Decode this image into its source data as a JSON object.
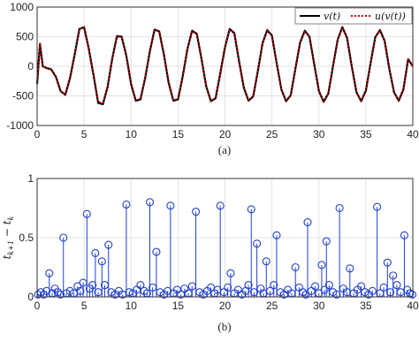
{
  "chart_data": [
    {
      "type": "line",
      "caption": "(a)",
      "xlim": [
        0,
        40
      ],
      "ylim": [
        -1000,
        1000
      ],
      "xticks": [
        0,
        5,
        10,
        15,
        20,
        25,
        30,
        35,
        40
      ],
      "yticks": [
        -1000,
        -500,
        0,
        500,
        1000
      ],
      "grid": true,
      "legend_position": "top-right",
      "series": [
        {
          "name": "v(t)",
          "color": "#000000",
          "style": "solid",
          "x": [
            0,
            0.3,
            0.6,
            1.0,
            1.5,
            2.0,
            2.5,
            3.0,
            3.5,
            4.0,
            4.5,
            5.0,
            5.5,
            6.0,
            6.5,
            7.0,
            7.5,
            8.0,
            8.5,
            9.0,
            9.5,
            10.0,
            10.5,
            11.0,
            11.5,
            12.0,
            12.5,
            13.0,
            13.5,
            14.0,
            14.5,
            15.0,
            15.5,
            16.0,
            16.5,
            17.0,
            17.5,
            18.0,
            18.5,
            19.0,
            19.5,
            20.0,
            20.5,
            21.0,
            21.5,
            22.0,
            22.5,
            23.0,
            23.5,
            24.0,
            24.5,
            25.0,
            25.5,
            26.0,
            26.5,
            27.0,
            27.5,
            28.0,
            28.5,
            29.0,
            29.5,
            30.0,
            30.5,
            31.0,
            31.5,
            32.0,
            32.5,
            33.0,
            33.5,
            34.0,
            34.5,
            35.0,
            35.5,
            36.0,
            36.5,
            37.0,
            37.5,
            38.0,
            38.5,
            39.0,
            39.5,
            40.0
          ],
          "y": [
            -300,
            380,
            0,
            -30,
            -50,
            -180,
            -420,
            -480,
            -200,
            200,
            630,
            660,
            300,
            -150,
            -620,
            -640,
            -350,
            130,
            510,
            500,
            180,
            -300,
            -580,
            -560,
            -200,
            250,
            620,
            590,
            200,
            -280,
            -580,
            -560,
            -170,
            290,
            600,
            550,
            130,
            -340,
            -590,
            -540,
            -120,
            320,
            630,
            560,
            90,
            -360,
            -580,
            -510,
            -80,
            390,
            610,
            520,
            60,
            -390,
            -590,
            -490,
            -40,
            400,
            600,
            500,
            40,
            -420,
            -600,
            -460,
            0,
            450,
            660,
            480,
            0,
            -440,
            -590,
            -410,
            50,
            490,
            610,
            430,
            -40,
            -440,
            -580,
            -390,
            120,
            0
          ]
        },
        {
          "name": "u(v(t))",
          "color": "#cc0000",
          "style": "dotted",
          "x": [
            0,
            0.3,
            0.6,
            1.0,
            1.5,
            2.0,
            2.5,
            3.0,
            3.5,
            4.0,
            4.5,
            5.0,
            5.5,
            6.0,
            6.5,
            7.0,
            7.5,
            8.0,
            8.5,
            9.0,
            9.5,
            10.0,
            10.5,
            11.0,
            11.5,
            12.0,
            12.5,
            13.0,
            13.5,
            14.0,
            14.5,
            15.0,
            15.5,
            16.0,
            16.5,
            17.0,
            17.5,
            18.0,
            18.5,
            19.0,
            19.5,
            20.0,
            20.5,
            21.0,
            21.5,
            22.0,
            22.5,
            23.0,
            23.5,
            24.0,
            24.5,
            25.0,
            25.5,
            26.0,
            26.5,
            27.0,
            27.5,
            28.0,
            28.5,
            29.0,
            29.5,
            30.0,
            30.5,
            31.0,
            31.5,
            32.0,
            32.5,
            33.0,
            33.5,
            34.0,
            34.5,
            35.0,
            35.5,
            36.0,
            36.5,
            37.0,
            37.5,
            38.0,
            38.5,
            39.0,
            39.5,
            40.0
          ],
          "y": [
            -300,
            380,
            0,
            -30,
            -50,
            -180,
            -420,
            -480,
            -200,
            200,
            630,
            660,
            300,
            -150,
            -600,
            -620,
            -350,
            130,
            510,
            500,
            180,
            -300,
            -570,
            -550,
            -200,
            250,
            610,
            580,
            200,
            -280,
            -570,
            -550,
            -170,
            290,
            590,
            540,
            130,
            -340,
            -580,
            -530,
            -120,
            320,
            620,
            550,
            90,
            -360,
            -570,
            -500,
            -80,
            390,
            600,
            510,
            60,
            -390,
            -580,
            -480,
            -40,
            400,
            590,
            490,
            40,
            -420,
            -590,
            -450,
            0,
            450,
            650,
            470,
            0,
            -440,
            -580,
            -400,
            50,
            490,
            600,
            420,
            -40,
            -440,
            -570,
            -380,
            120,
            0
          ]
        }
      ]
    },
    {
      "type": "stem",
      "caption": "(b)",
      "ylabel": "t_{k+1} - t_k",
      "xlim": [
        0,
        40
      ],
      "ylim": [
        0,
        1
      ],
      "xticks": [
        0,
        5,
        10,
        15,
        20,
        25,
        30,
        35,
        40
      ],
      "yticks": [
        0,
        0.5,
        1
      ],
      "grid": true,
      "color": "#1f3fd0",
      "tall_stems": [
        {
          "x": 1.3,
          "y": 0.2
        },
        {
          "x": 2.8,
          "y": 0.5
        },
        {
          "x": 5.3,
          "y": 0.7
        },
        {
          "x": 7.6,
          "y": 0.44
        },
        {
          "x": 6.9,
          "y": 0.3
        },
        {
          "x": 6.2,
          "y": 0.37
        },
        {
          "x": 9.5,
          "y": 0.78
        },
        {
          "x": 12.0,
          "y": 0.8
        },
        {
          "x": 12.7,
          "y": 0.38
        },
        {
          "x": 14.2,
          "y": 0.77
        },
        {
          "x": 16.9,
          "y": 0.72
        },
        {
          "x": 19.5,
          "y": 0.77
        },
        {
          "x": 20.6,
          "y": 0.2
        },
        {
          "x": 22.8,
          "y": 0.74
        },
        {
          "x": 23.4,
          "y": 0.45
        },
        {
          "x": 24.4,
          "y": 0.3
        },
        {
          "x": 25.5,
          "y": 0.52
        },
        {
          "x": 27.5,
          "y": 0.25
        },
        {
          "x": 28.8,
          "y": 0.63
        },
        {
          "x": 30.8,
          "y": 0.47
        },
        {
          "x": 30.3,
          "y": 0.27
        },
        {
          "x": 32.2,
          "y": 0.75
        },
        {
          "x": 33.3,
          "y": 0.24
        },
        {
          "x": 36.2,
          "y": 0.76
        },
        {
          "x": 37.3,
          "y": 0.29
        },
        {
          "x": 37.9,
          "y": 0.18
        },
        {
          "x": 39.1,
          "y": 0.52
        }
      ],
      "base_points": [
        {
          "x": 0.1,
          "y": 0.02
        },
        {
          "x": 0.4,
          "y": 0.04
        },
        {
          "x": 0.7,
          "y": 0.02
        },
        {
          "x": 1.0,
          "y": 0.05
        },
        {
          "x": 1.6,
          "y": 0.03
        },
        {
          "x": 1.9,
          "y": 0.07
        },
        {
          "x": 2.2,
          "y": 0.04
        },
        {
          "x": 2.5,
          "y": 0.02
        },
        {
          "x": 3.1,
          "y": 0.03
        },
        {
          "x": 3.5,
          "y": 0.05
        },
        {
          "x": 3.9,
          "y": 0.03
        },
        {
          "x": 4.3,
          "y": 0.09
        },
        {
          "x": 4.6,
          "y": 0.05
        },
        {
          "x": 4.9,
          "y": 0.12
        },
        {
          "x": 5.6,
          "y": 0.07
        },
        {
          "x": 5.9,
          "y": 0.1
        },
        {
          "x": 6.5,
          "y": 0.04
        },
        {
          "x": 7.2,
          "y": 0.1
        },
        {
          "x": 7.9,
          "y": 0.04
        },
        {
          "x": 8.3,
          "y": 0.02
        },
        {
          "x": 8.7,
          "y": 0.05
        },
        {
          "x": 9.1,
          "y": 0.02
        },
        {
          "x": 9.8,
          "y": 0.04
        },
        {
          "x": 10.2,
          "y": 0.03
        },
        {
          "x": 10.6,
          "y": 0.06
        },
        {
          "x": 11.0,
          "y": 0.1
        },
        {
          "x": 11.4,
          "y": 0.05
        },
        {
          "x": 11.7,
          "y": 0.03
        },
        {
          "x": 12.3,
          "y": 0.08
        },
        {
          "x": 13.1,
          "y": 0.04
        },
        {
          "x": 13.5,
          "y": 0.02
        },
        {
          "x": 13.9,
          "y": 0.05
        },
        {
          "x": 14.5,
          "y": 0.03
        },
        {
          "x": 14.9,
          "y": 0.06
        },
        {
          "x": 15.3,
          "y": 0.02
        },
        {
          "x": 15.7,
          "y": 0.07
        },
        {
          "x": 16.1,
          "y": 0.03
        },
        {
          "x": 16.5,
          "y": 0.09
        },
        {
          "x": 17.3,
          "y": 0.04
        },
        {
          "x": 17.7,
          "y": 0.02
        },
        {
          "x": 18.1,
          "y": 0.05
        },
        {
          "x": 18.5,
          "y": 0.08
        },
        {
          "x": 18.9,
          "y": 0.03
        },
        {
          "x": 19.2,
          "y": 0.06
        },
        {
          "x": 19.9,
          "y": 0.04
        },
        {
          "x": 20.3,
          "y": 0.08
        },
        {
          "x": 21.0,
          "y": 0.03
        },
        {
          "x": 21.4,
          "y": 0.06
        },
        {
          "x": 21.8,
          "y": 0.02
        },
        {
          "x": 22.2,
          "y": 0.05
        },
        {
          "x": 22.5,
          "y": 0.1
        },
        {
          "x": 23.1,
          "y": 0.04
        },
        {
          "x": 23.8,
          "y": 0.07
        },
        {
          "x": 24.1,
          "y": 0.03
        },
        {
          "x": 24.8,
          "y": 0.05
        },
        {
          "x": 25.2,
          "y": 0.1
        },
        {
          "x": 25.9,
          "y": 0.04
        },
        {
          "x": 26.3,
          "y": 0.02
        },
        {
          "x": 26.7,
          "y": 0.06
        },
        {
          "x": 27.1,
          "y": 0.03
        },
        {
          "x": 27.9,
          "y": 0.08
        },
        {
          "x": 28.3,
          "y": 0.04
        },
        {
          "x": 28.6,
          "y": 0.02
        },
        {
          "x": 29.2,
          "y": 0.05
        },
        {
          "x": 29.6,
          "y": 0.09
        },
        {
          "x": 30.0,
          "y": 0.03
        },
        {
          "x": 30.6,
          "y": 0.06
        },
        {
          "x": 31.1,
          "y": 0.1
        },
        {
          "x": 31.5,
          "y": 0.04
        },
        {
          "x": 31.9,
          "y": 0.02
        },
        {
          "x": 32.6,
          "y": 0.07
        },
        {
          "x": 33.0,
          "y": 0.04
        },
        {
          "x": 33.7,
          "y": 0.03
        },
        {
          "x": 34.1,
          "y": 0.06
        },
        {
          "x": 34.5,
          "y": 0.09
        },
        {
          "x": 34.9,
          "y": 0.04
        },
        {
          "x": 35.3,
          "y": 0.02
        },
        {
          "x": 35.7,
          "y": 0.05
        },
        {
          "x": 36.5,
          "y": 0.03
        },
        {
          "x": 36.9,
          "y": 0.08
        },
        {
          "x": 37.6,
          "y": 0.04
        },
        {
          "x": 38.3,
          "y": 0.1
        },
        {
          "x": 38.7,
          "y": 0.04
        },
        {
          "x": 39.4,
          "y": 0.06
        },
        {
          "x": 39.7,
          "y": 0.03
        },
        {
          "x": 39.95,
          "y": 0.02
        }
      ]
    }
  ]
}
